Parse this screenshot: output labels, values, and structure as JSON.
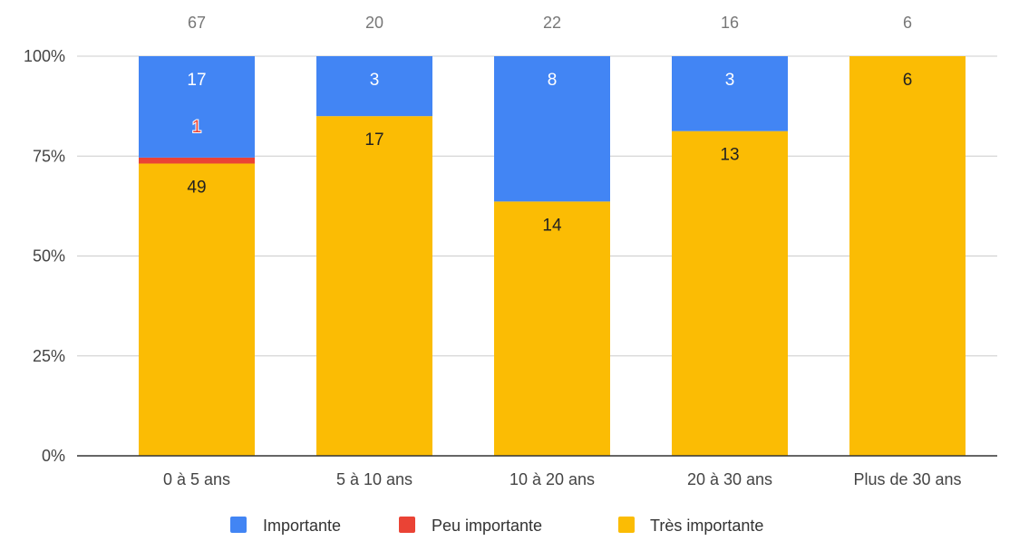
{
  "chart_data": {
    "type": "bar",
    "stacked": true,
    "normalized": true,
    "categories": [
      "0 à 5 ans",
      "5 à 10 ans",
      "10 à 20 ans",
      "20 à 30 ans",
      "Plus de 30 ans"
    ],
    "totals": [
      67,
      20,
      22,
      16,
      6
    ],
    "series": [
      {
        "name": "Très importante",
        "color": "#FBBC04",
        "values": [
          49,
          17,
          14,
          13,
          6
        ]
      },
      {
        "name": "Peu importante",
        "color": "#EA4335",
        "values": [
          1,
          0,
          0,
          0,
          0
        ]
      },
      {
        "name": "Importante",
        "color": "#4285F4",
        "values": [
          17,
          3,
          8,
          3,
          0
        ]
      }
    ],
    "legend_order": [
      "Importante",
      "Peu importante",
      "Très importante"
    ],
    "y_ticks": [
      "0%",
      "25%",
      "50%",
      "75%",
      "100%"
    ],
    "ylim": [
      0,
      100
    ],
    "grid": true,
    "legend_position": "bottom"
  }
}
